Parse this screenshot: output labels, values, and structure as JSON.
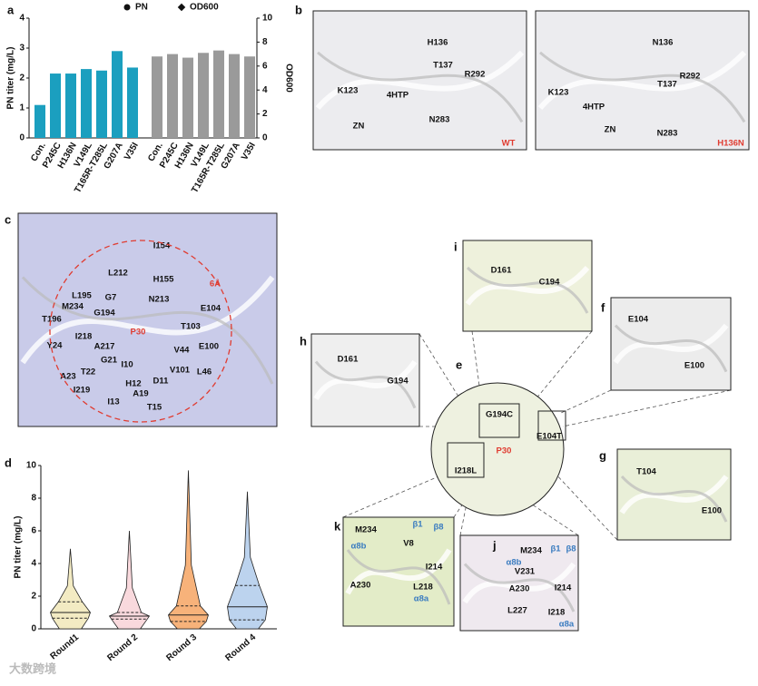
{
  "chart_data": [
    {
      "type": "bar",
      "ylabel": "PN titer (mg/L)",
      "y2label": "OD600",
      "categories": [
        "Con.",
        "P245C",
        "H136N",
        "V149L",
        "T165R-T285L",
        "G207A",
        "V35I"
      ],
      "series": [
        {
          "name": "PN",
          "color": "#1b9fbf",
          "values": [
            1.1,
            2.15,
            2.15,
            2.3,
            2.25,
            2.9,
            2.35
          ]
        },
        {
          "name": "OD600",
          "color": "#9a9a9a",
          "axis": "y2",
          "values": [
            6.8,
            7.0,
            6.7,
            7.1,
            7.3,
            7.0,
            6.8
          ]
        }
      ],
      "ylim": [
        0,
        4
      ],
      "yticks": [
        0,
        1,
        2,
        3,
        4
      ],
      "y2lim": [
        0,
        10
      ],
      "y2ticks": [
        0,
        2,
        4,
        6,
        8,
        10
      ]
    },
    {
      "type": "violin",
      "ylabel": "PN titer (mg/L)",
      "categories": [
        "Round1",
        "Round 2",
        "Round 3",
        "Round 4"
      ],
      "colors": [
        "#f3ebc3",
        "#f9d9dd",
        "#f7b27a",
        "#bcd3ee"
      ],
      "max": [
        4.9,
        6.0,
        9.7,
        8.4
      ],
      "median": [
        1.0,
        0.78,
        0.85,
        1.35
      ],
      "q1": [
        0.65,
        0.6,
        0.45,
        0.55
      ],
      "q3": [
        1.65,
        1.0,
        1.4,
        2.65
      ],
      "ylim": [
        0,
        10
      ],
      "yticks": [
        0,
        2,
        4,
        6,
        8,
        10
      ]
    }
  ],
  "panel_letters": [
    "a",
    "b",
    "c",
    "d",
    "e",
    "f",
    "g",
    "h",
    "i",
    "j",
    "k"
  ],
  "images": [
    {
      "labels": [
        "H136",
        "T137",
        "K123",
        "R292",
        "4HTP",
        "N283",
        "ZN",
        "WT"
      ]
    },
    {
      "labels": [
        "N136",
        "R292",
        "K123",
        "T137",
        "4HTP",
        "ZN",
        "N283",
        "H136N"
      ]
    },
    {
      "labels": [
        "I154",
        "L212",
        "H155",
        "G7",
        "L195",
        "N213",
        "G194",
        "M234",
        "T196",
        "P30",
        "T103",
        "E104",
        "I218",
        "A217",
        "V44",
        "E100",
        "Y24",
        "G21",
        "V101",
        "I10",
        "L46",
        "A23",
        "T22",
        "H12",
        "D11",
        "I219",
        "A19",
        "I13",
        "T15",
        "6Å"
      ]
    },
    {
      "labels": [
        "D161",
        "C194"
      ]
    },
    {
      "labels": [
        "E104",
        "E100"
      ]
    },
    {
      "labels": [
        "D161",
        "G194"
      ]
    },
    {
      "labels": [
        "G194C",
        "E104T",
        "P30",
        "I218L"
      ]
    },
    {
      "labels": [
        "T104",
        "E100"
      ]
    },
    {
      "labels": [
        "M234",
        "β1",
        "β8",
        "α8b",
        "V8",
        "I214",
        "A230",
        "L218",
        "α8a"
      ]
    },
    {
      "labels": [
        "M234",
        "β1",
        "β8",
        "α8b",
        "V231",
        "A230",
        "I214",
        "L227",
        "I218",
        "α8a"
      ]
    }
  ],
  "watermark": "大数跨境"
}
